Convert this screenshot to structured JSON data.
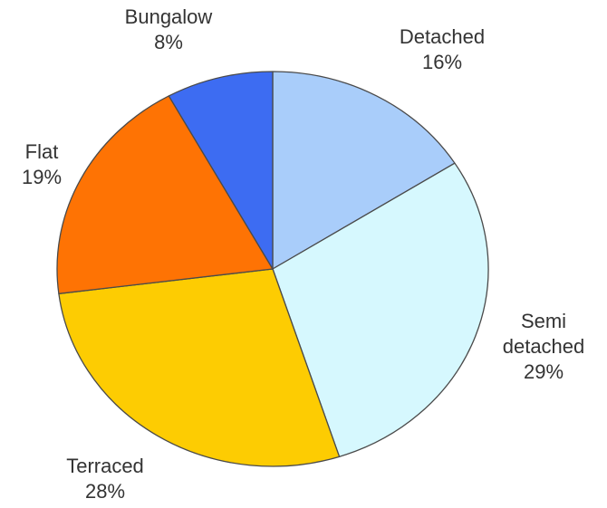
{
  "chart_data": {
    "type": "pie",
    "title": "",
    "slices": [
      {
        "name": "Detached",
        "value": 16,
        "label_lines": [
          "Detached"
        ],
        "pct_label": "16%",
        "color": "#a9cdfa"
      },
      {
        "name": "Semi detached",
        "value": 29,
        "label_lines": [
          "Semi",
          "detached"
        ],
        "pct_label": "29%",
        "color": "#d6f8fe"
      },
      {
        "name": "Terraced",
        "value": 28,
        "label_lines": [
          "Terraced"
        ],
        "pct_label": "28%",
        "color": "#fdcc02"
      },
      {
        "name": "Flat",
        "value": 19,
        "label_lines": [
          "Flat"
        ],
        "pct_label": "19%",
        "color": "#fe7304"
      },
      {
        "name": "Bungalow",
        "value": 8,
        "label_lines": [
          "Bungalow"
        ],
        "pct_label": "8%",
        "color": "#3d6cf2"
      }
    ],
    "legend": "none",
    "start_angle": "12 o'clock",
    "direction": "clockwise"
  }
}
